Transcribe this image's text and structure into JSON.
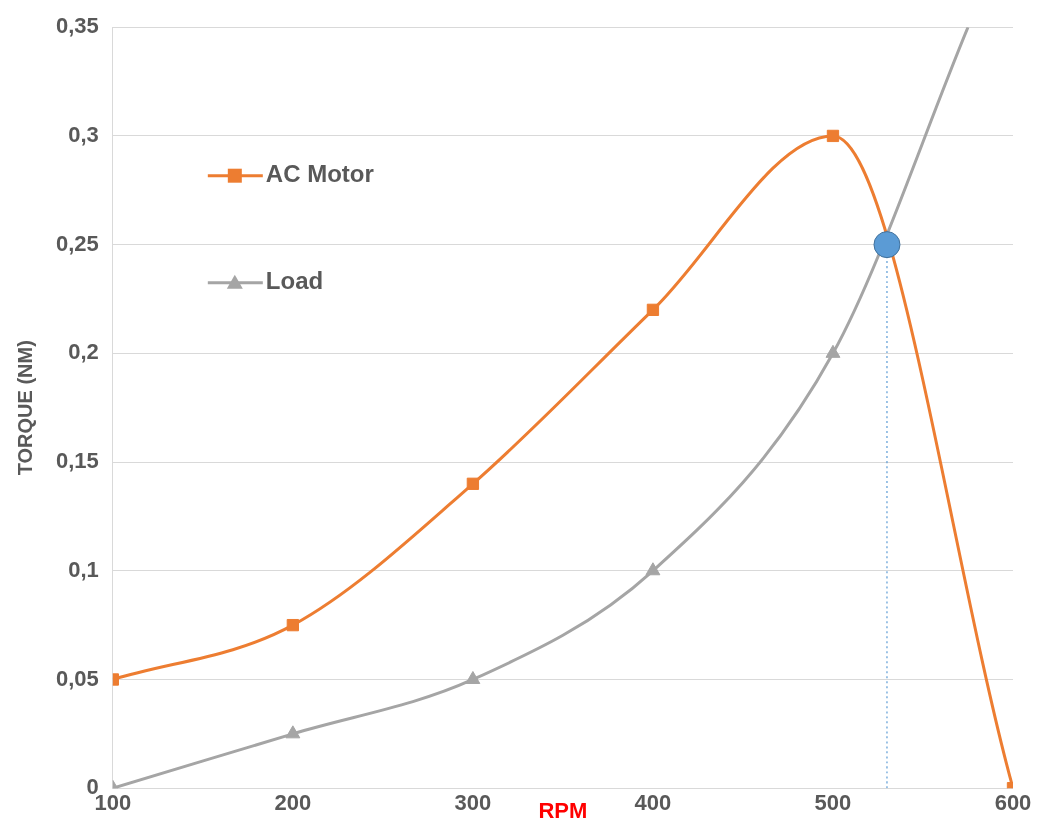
{
  "chart_data": {
    "type": "line",
    "xlabel": "RPM",
    "ylabel": "TORQUE (NM)",
    "x": [
      100,
      200,
      300,
      400,
      500,
      600
    ],
    "xlim": [
      100,
      600
    ],
    "xticks": [
      100,
      200,
      300,
      400,
      500,
      600
    ],
    "ylim": [
      0,
      0.35
    ],
    "yticks": [
      {
        "value": 0,
        "label": "0"
      },
      {
        "value": 0.05,
        "label": "0,05"
      },
      {
        "value": 0.1,
        "label": "0,1"
      },
      {
        "value": 0.15,
        "label": "0,15"
      },
      {
        "value": 0.2,
        "label": "0,2"
      },
      {
        "value": 0.25,
        "label": "0,25"
      },
      {
        "value": 0.3,
        "label": "0,3"
      },
      {
        "value": 0.35,
        "label": "0,35"
      }
    ],
    "grid": "y",
    "legend": "left",
    "series": [
      {
        "name": "AC Motor",
        "color": "#ed7d31",
        "marker": "square",
        "values": [
          0.05,
          0.075,
          0.14,
          0.22,
          0.3,
          0
        ]
      },
      {
        "name": "Load",
        "color": "#a5a5a5",
        "marker": "triangle",
        "x": [
          100,
          200,
          300,
          400,
          500,
          575
        ],
        "values": [
          0,
          0.025,
          0.05,
          0.1,
          0.2,
          0.35
        ]
      },
      {
        "type": "line",
        "color": "#5b9bd5",
        "marker": "none",
        "line_style": "dotted",
        "x": [
          530,
          530
        ],
        "values": [
          0,
          0.25
        ]
      },
      {
        "type": "scatter",
        "color": "#5b9bd5",
        "marker": "circle",
        "x": [
          530
        ],
        "values": [
          0.25
        ]
      }
    ]
  }
}
